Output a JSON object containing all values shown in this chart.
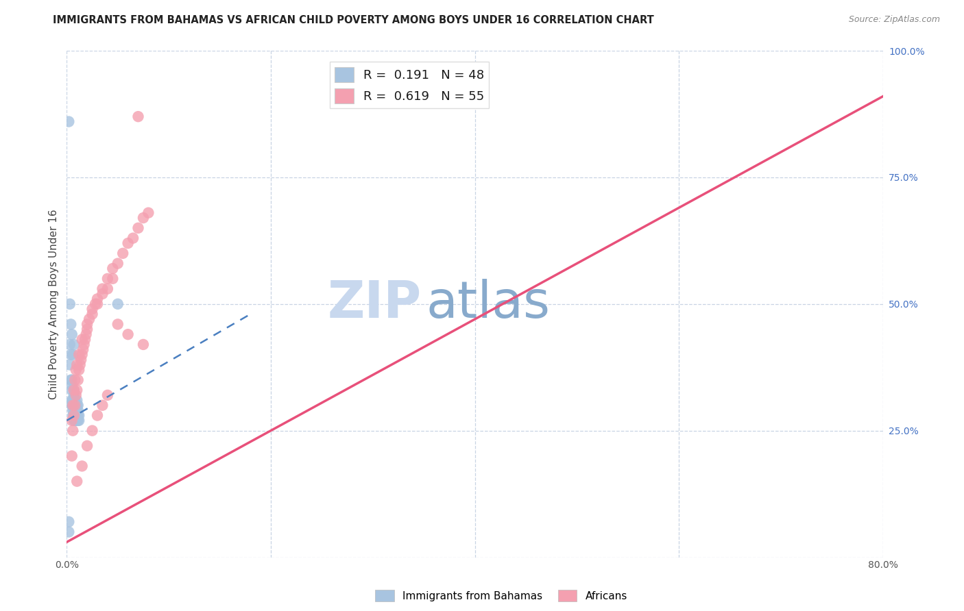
{
  "title": "IMMIGRANTS FROM BAHAMAS VS AFRICAN CHILD POVERTY AMONG BOYS UNDER 16 CORRELATION CHART",
  "source": "Source: ZipAtlas.com",
  "ylabel": "Child Poverty Among Boys Under 16",
  "xlim": [
    0.0,
    0.8
  ],
  "ylim": [
    0.0,
    1.0
  ],
  "xticks": [
    0.0,
    0.2,
    0.4,
    0.6,
    0.8
  ],
  "xticklabels": [
    "0.0%",
    "",
    "",
    "",
    "80.0%"
  ],
  "yticks": [
    0.0,
    0.25,
    0.5,
    0.75,
    1.0
  ],
  "yticklabels": [
    "",
    "25.0%",
    "50.0%",
    "75.0%",
    "100.0%"
  ],
  "r_bahamas": 0.191,
  "n_bahamas": 48,
  "r_africans": 0.619,
  "n_africans": 55,
  "bahamas_color": "#a8c4e0",
  "africans_color": "#f4a0b0",
  "bahamas_line_color": "#4a7fc0",
  "africans_line_color": "#e8507a",
  "watermark_zip": "ZIP",
  "watermark_atlas": "atlas",
  "watermark_color_zip": "#c8d8ee",
  "watermark_color_atlas": "#88aacc",
  "background_color": "#ffffff",
  "grid_color": "#c8d4e4",
  "bahamas_x": [
    0.002,
    0.003,
    0.003,
    0.004,
    0.004,
    0.005,
    0.005,
    0.005,
    0.005,
    0.005,
    0.006,
    0.006,
    0.006,
    0.006,
    0.007,
    0.007,
    0.007,
    0.007,
    0.007,
    0.007,
    0.007,
    0.008,
    0.008,
    0.008,
    0.008,
    0.008,
    0.009,
    0.009,
    0.009,
    0.01,
    0.01,
    0.01,
    0.01,
    0.01,
    0.011,
    0.011,
    0.011,
    0.011,
    0.012,
    0.012,
    0.003,
    0.004,
    0.005,
    0.006,
    0.007,
    0.05,
    0.002,
    0.002
  ],
  "bahamas_y": [
    0.86,
    0.38,
    0.42,
    0.35,
    0.4,
    0.3,
    0.31,
    0.33,
    0.34,
    0.35,
    0.28,
    0.29,
    0.3,
    0.31,
    0.27,
    0.28,
    0.29,
    0.3,
    0.31,
    0.32,
    0.33,
    0.27,
    0.28,
    0.29,
    0.3,
    0.31,
    0.27,
    0.28,
    0.29,
    0.27,
    0.28,
    0.29,
    0.3,
    0.31,
    0.27,
    0.28,
    0.29,
    0.3,
    0.27,
    0.28,
    0.5,
    0.46,
    0.44,
    0.4,
    0.42,
    0.5,
    0.05,
    0.07
  ],
  "africans_x": [
    0.005,
    0.006,
    0.007,
    0.008,
    0.009,
    0.01,
    0.011,
    0.012,
    0.013,
    0.014,
    0.015,
    0.016,
    0.017,
    0.018,
    0.019,
    0.02,
    0.022,
    0.025,
    0.028,
    0.03,
    0.035,
    0.04,
    0.045,
    0.05,
    0.055,
    0.06,
    0.065,
    0.07,
    0.075,
    0.08,
    0.005,
    0.006,
    0.007,
    0.008,
    0.009,
    0.01,
    0.012,
    0.015,
    0.02,
    0.025,
    0.03,
    0.035,
    0.04,
    0.045,
    0.01,
    0.015,
    0.02,
    0.025,
    0.03,
    0.035,
    0.04,
    0.05,
    0.06,
    0.07,
    0.075
  ],
  "africans_y": [
    0.2,
    0.25,
    0.28,
    0.3,
    0.32,
    0.33,
    0.35,
    0.37,
    0.38,
    0.39,
    0.4,
    0.41,
    0.42,
    0.43,
    0.44,
    0.45,
    0.47,
    0.49,
    0.5,
    0.51,
    0.53,
    0.55,
    0.57,
    0.58,
    0.6,
    0.62,
    0.63,
    0.65,
    0.67,
    0.68,
    0.27,
    0.3,
    0.33,
    0.35,
    0.37,
    0.38,
    0.4,
    0.43,
    0.46,
    0.48,
    0.5,
    0.52,
    0.53,
    0.55,
    0.15,
    0.18,
    0.22,
    0.25,
    0.28,
    0.3,
    0.32,
    0.46,
    0.44,
    0.87,
    0.42
  ],
  "africans_line_x0": 0.0,
  "africans_line_y0": 0.03,
  "africans_line_x1": 0.8,
  "africans_line_y1": 0.91,
  "bahamas_line_x0": 0.0,
  "bahamas_line_y0": 0.27,
  "bahamas_line_x1": 0.18,
  "bahamas_line_y1": 0.48
}
